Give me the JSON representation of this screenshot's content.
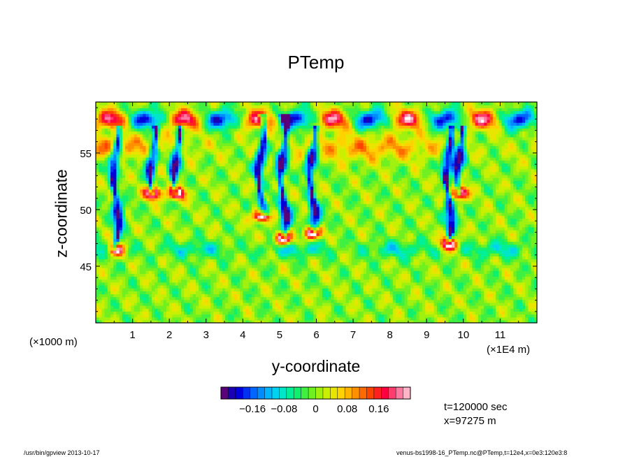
{
  "chart_data": {
    "type": "heatmap",
    "title": "PTemp",
    "xlabel": "y-coordinate",
    "ylabel": "z-coordinate",
    "x_unit_label": "(×1000 m)",
    "x_scale_label": "(×1E4 m)",
    "x_ticks": [
      "1",
      "2",
      "3",
      "4",
      "5",
      "6",
      "7",
      "8",
      "9",
      "10",
      "11"
    ],
    "y_ticks": [
      "45",
      "50",
      "55"
    ],
    "xlim": [
      0,
      12
    ],
    "ylim": [
      40,
      59.5
    ],
    "colorbar": {
      "tick_labels": [
        "−0.16",
        "−0.08",
        "0",
        "0.08",
        "0.16"
      ],
      "tick_values": [
        -0.16,
        -0.08,
        0,
        0.08,
        0.16
      ],
      "range": [
        -0.24,
        0.24
      ],
      "colors": [
        "#5a0078",
        "#1a00b4",
        "#0000dc",
        "#0030f0",
        "#0066ff",
        "#008cff",
        "#00b4ff",
        "#00d2f0",
        "#00e6c8",
        "#00f09a",
        "#10f06c",
        "#40f040",
        "#70f020",
        "#a0f010",
        "#c8f000",
        "#e8e600",
        "#ffd200",
        "#ffb400",
        "#ff9000",
        "#ff6a00",
        "#ff4400",
        "#ff2020",
        "#ff0040",
        "#ff3c6e",
        "#ff78a0",
        "#ffb4c8"
      ]
    },
    "features": {
      "cold_plumes": [
        {
          "y": 0.55,
          "z_top": 57,
          "z_bottom": 47
        },
        {
          "y": 1.55,
          "z_top": 57,
          "z_bottom": 52
        },
        {
          "y": 2.2,
          "z_top": 57,
          "z_bottom": 52
        },
        {
          "y": 4.5,
          "z_top": 58,
          "z_bottom": 50
        },
        {
          "y": 5.1,
          "z_top": 58,
          "z_bottom": 48
        },
        {
          "y": 5.9,
          "z_top": 57,
          "z_bottom": 48.5
        },
        {
          "y": 9.6,
          "z_top": 57,
          "z_bottom": 47.5
        },
        {
          "y": 9.9,
          "z_top": 57,
          "z_bottom": 52
        }
      ],
      "warm_layer_z": 55.5,
      "cold_layer_z": 46.5,
      "top_warm_z": 58
    },
    "annotations": {
      "time": "t=120000 sec",
      "position": "x=97275 m"
    }
  },
  "footer": {
    "left": "/usr/bin/gpview  2013-10-17",
    "right": "venus-bs1998-16_PTemp.nc@PTemp,t=12e4,x=0e3:120e3:8"
  }
}
